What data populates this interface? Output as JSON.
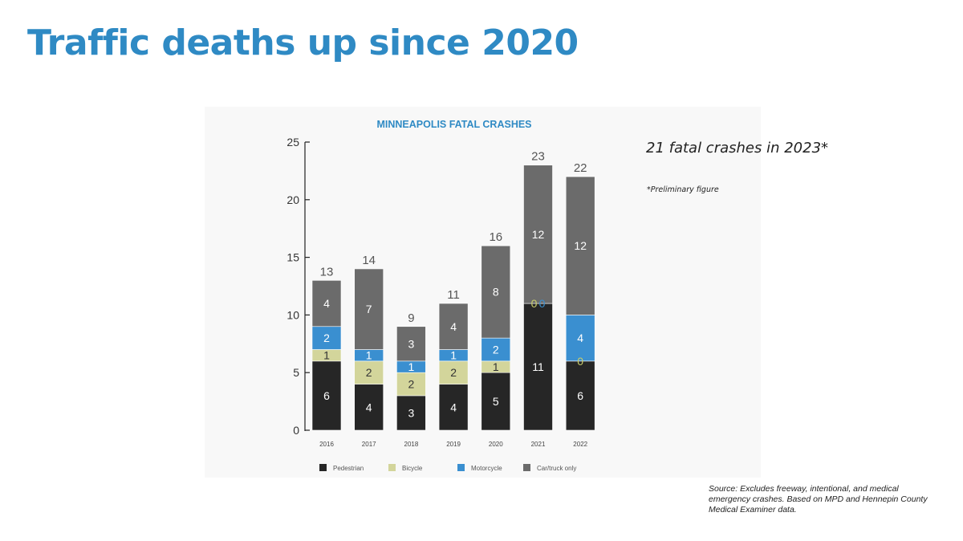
{
  "slide": {
    "title": "Traffic deaths up since 2020",
    "note": "21 fatal crashes in 2023*",
    "footnote": "*Preliminary figure",
    "source": "Source: Excludes freeway, intentional, and medical emergency crashes. Based on MPD and Hennepin County Medical Examiner data."
  },
  "colors": {
    "title": "#2f8ac4",
    "pedestrian": "#262626",
    "bicycle": "#d3d59b",
    "motorcycle": "#3a8fd0",
    "car_truck": "#6b6b6b"
  },
  "chart_data": {
    "type": "bar",
    "stacked": true,
    "title": "MINNEAPOLIS FATAL CRASHES",
    "categories": [
      "2016",
      "2017",
      "2018",
      "2019",
      "2020",
      "2021",
      "2022"
    ],
    "series": [
      {
        "name": "Pedestrian",
        "values": [
          6,
          4,
          3,
          4,
          5,
          11,
          6
        ]
      },
      {
        "name": "Bicycle",
        "values": [
          1,
          2,
          2,
          2,
          1,
          0,
          0
        ]
      },
      {
        "name": "Motorcycle",
        "values": [
          2,
          1,
          1,
          1,
          2,
          0,
          4
        ]
      },
      {
        "name": "Car/truck only",
        "values": [
          4,
          7,
          3,
          4,
          8,
          12,
          12
        ]
      }
    ],
    "totals": [
      13,
      14,
      9,
      11,
      16,
      23,
      22
    ],
    "ylim": [
      0,
      25
    ],
    "yticks": [
      0,
      5,
      10,
      15,
      20,
      25
    ],
    "legend": [
      "Pedestrian",
      "Bicycle",
      "Motorcycle",
      "Car/truck only"
    ],
    "legend_position": "bottom"
  }
}
